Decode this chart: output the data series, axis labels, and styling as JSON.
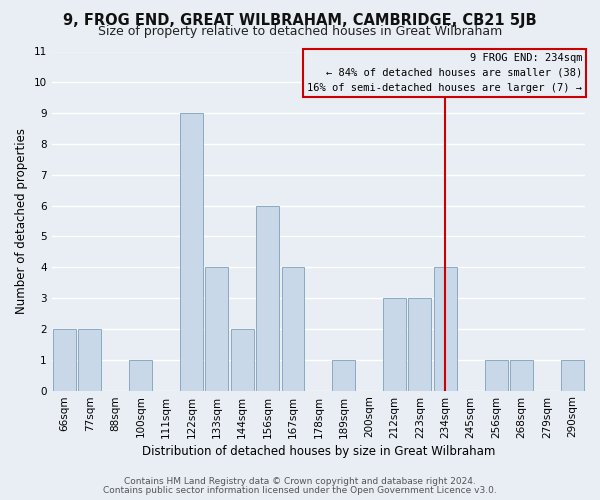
{
  "title": "9, FROG END, GREAT WILBRAHAM, CAMBRIDGE, CB21 5JB",
  "subtitle": "Size of property relative to detached houses in Great Wilbraham",
  "xlabel": "Distribution of detached houses by size in Great Wilbraham",
  "ylabel": "Number of detached properties",
  "bar_labels": [
    "66sqm",
    "77sqm",
    "88sqm",
    "100sqm",
    "111sqm",
    "122sqm",
    "133sqm",
    "144sqm",
    "156sqm",
    "167sqm",
    "178sqm",
    "189sqm",
    "200sqm",
    "212sqm",
    "223sqm",
    "234sqm",
    "245sqm",
    "256sqm",
    "268sqm",
    "279sqm",
    "290sqm"
  ],
  "bar_values": [
    2,
    2,
    0,
    1,
    0,
    9,
    4,
    2,
    6,
    4,
    0,
    1,
    0,
    3,
    3,
    4,
    0,
    1,
    1,
    0,
    1
  ],
  "bar_color": "#c8d8e8",
  "bar_edge_color": "#8aaabf",
  "highlight_index": 15,
  "highlight_line_color": "#cc0000",
  "ylim": [
    0,
    11
  ],
  "yticks": [
    0,
    1,
    2,
    3,
    4,
    5,
    6,
    7,
    8,
    9,
    10,
    11
  ],
  "legend_title": "9 FROG END: 234sqm",
  "legend_line1": "← 84% of detached houses are smaller (38)",
  "legend_line2": "16% of semi-detached houses are larger (7) →",
  "legend_box_color": "#cc0000",
  "footer_line1": "Contains HM Land Registry data © Crown copyright and database right 2024.",
  "footer_line2": "Contains public sector information licensed under the Open Government Licence v3.0.",
  "bg_color": "#e8eef4",
  "grid_color": "#ffffff",
  "title_fontsize": 10.5,
  "subtitle_fontsize": 9,
  "axis_label_fontsize": 8.5,
  "tick_fontsize": 7.5,
  "footer_fontsize": 6.5,
  "legend_fontsize": 7.5
}
